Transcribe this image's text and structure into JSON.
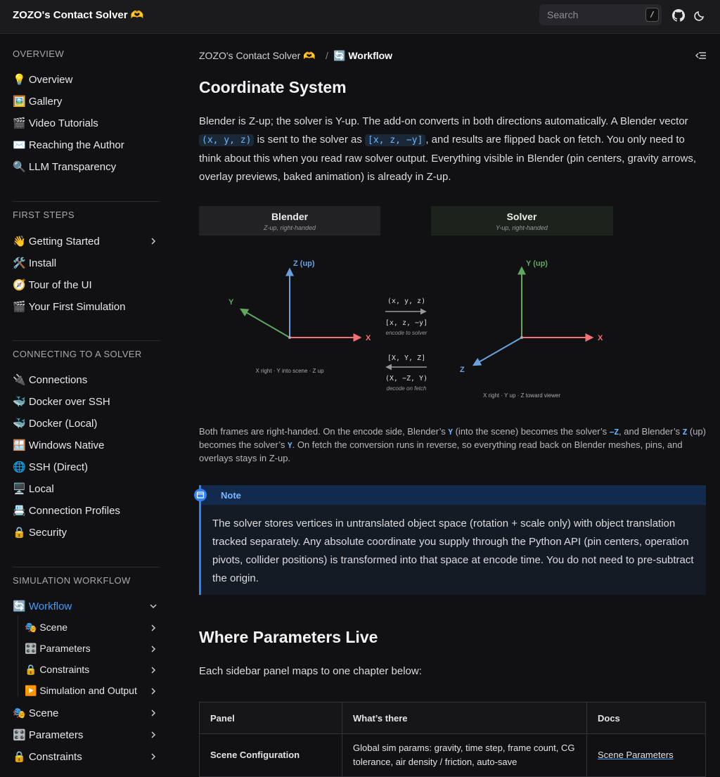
{
  "topbar": {
    "title": "ZOZO's Contact Solver 🫶",
    "search_placeholder": "Search",
    "search_key": "/"
  },
  "sidebar": {
    "sections": [
      {
        "title": "OVERVIEW",
        "items": [
          "💡 Overview",
          "🖼️ Gallery",
          "🎬 Video Tutorials",
          "✉️ Reaching the Author",
          "🔍 LLM Transparency"
        ]
      },
      {
        "title": "FIRST STEPS",
        "items": [
          "👋 Getting Started",
          "🛠️ Install",
          "🧭 Tour of the UI",
          "🎬 Your First Simulation"
        ]
      },
      {
        "title": "CONNECTING TO A SOLVER",
        "items": [
          "🔌 Connections",
          "🐳 Docker over SSH",
          "🐳 Docker (Local)",
          "🪟 Windows Native",
          "🌐 SSH (Direct)",
          "🖥️ Local",
          "📇 Connection Profiles",
          "🔒 Security"
        ]
      },
      {
        "title": "SIMULATION WORKFLOW",
        "items": [
          "🔄 Workflow"
        ],
        "subitems": [
          "🎭 Scene",
          "🎛️ Parameters",
          "🔒 Constraints",
          "▶️ Simulation and Output"
        ],
        "more": [
          "🎭 Scene",
          "🎛️ Parameters",
          "🔒 Constraints"
        ]
      }
    ]
  },
  "breadcrumb": [
    "ZOZO's Contact Solver 🫶",
    "/",
    "🔄 Workflow"
  ],
  "section1": {
    "heading": "Coordinate System",
    "paragraph": [
      "Blender is Z-up; the solver is Y-up. The add-on converts in both directions automatically. A Blender vector ",
      "(x, y, z)",
      " is sent to the solver as ",
      "[x, z, −y]",
      ", and results are flipped back on fetch. You only need to think about this when you read raw solver output. Everything visible in Blender (pin centers, gravity arrows, overlay previews, baked animation) is already in Z-up."
    ],
    "diagram": {
      "blender": {
        "title": "Blender",
        "subtitle": "Z-up, right-handed",
        "z": "Z (up)",
        "y": "Y",
        "x": "X",
        "caption": "X right · Y into scene · Z up"
      },
      "solver": {
        "title": "Solver",
        "subtitle": "Y-up, right-handed",
        "y": "Y (up)",
        "x": "X",
        "z": "Z",
        "caption": "X right · Y up · Z toward viewer"
      },
      "encode": {
        "from": "(x, y, z)",
        "to": "[x, z, −y]",
        "label": "encode to solver"
      },
      "decode": {
        "from": "[X, Y, Z]",
        "to": "(X, −Z, Y)",
        "label": "decode on fetch"
      }
    },
    "caption": [
      "Both frames are right-handed. On the encode side, Blender’s ",
      "Y",
      " (into the scene) becomes the solver’s ",
      "−Z",
      ", and Blender’s ",
      "Z",
      " (up) becomes the solver’s ",
      "Y",
      ". On fetch the conversion runs in reverse, so everything read back on Blender meshes, pins, and overlays stays in Z-up."
    ],
    "note": {
      "title": "Note",
      "body": "The solver stores vertices in untranslated object space (rotation + scale only) with object translation tracked separately. Any absolute coordinate you supply through the Python API (pin centers, operation pivots, collider positions) is transformed into that space at encode time. You do not need to pre-subtract the origin."
    }
  },
  "section2": {
    "heading": "Where Parameters Live",
    "paragraph": "Each sidebar panel maps to one chapter below:",
    "table": {
      "header": [
        "Panel",
        "What’s there",
        "Docs"
      ],
      "rows": [
        [
          "Scene Configuration",
          "Global sim params: gravity, time step, frame count, CG tolerance, air density / friction, auto-save",
          "Scene Parameters"
        ]
      ]
    }
  }
}
